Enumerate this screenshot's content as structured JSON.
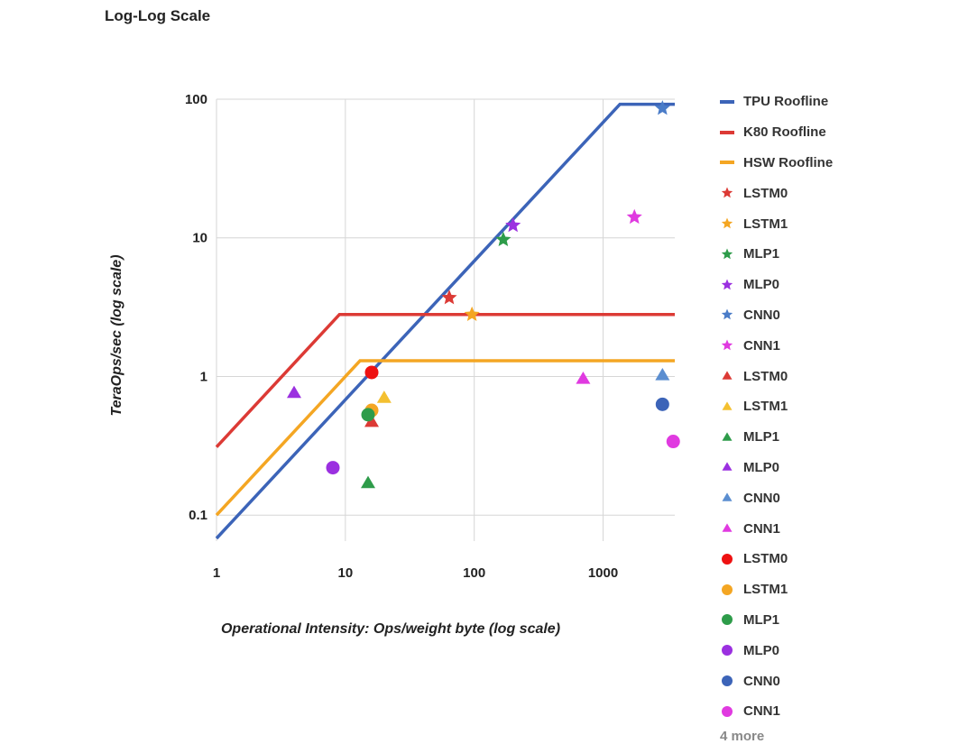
{
  "chart_data": {
    "type": "scatter",
    "title": "Log-Log Scale",
    "xlabel": "Operational Intensity: Ops/weight byte (log scale)",
    "ylabel": "TeraOps/sec (log scale)",
    "xscale": "log",
    "yscale": "log",
    "xlim": [
      1,
      3600
    ],
    "ylim": [
      0.065,
      100
    ],
    "x_ticks": [
      {
        "value": 1,
        "label": "1"
      },
      {
        "value": 10,
        "label": "10"
      },
      {
        "value": 100,
        "label": "100"
      },
      {
        "value": 1000,
        "label": "1000"
      }
    ],
    "y_ticks": [
      {
        "value": 0.1,
        "label": "0.1"
      },
      {
        "value": 1,
        "label": "1"
      },
      {
        "value": 10,
        "label": "10"
      },
      {
        "value": 100,
        "label": "100"
      }
    ],
    "grid": true,
    "legend_position": "right",
    "legend_more": "4 more",
    "lines": [
      {
        "name": "TPU Roofline",
        "color": "#3c64b8",
        "points": [
          [
            1,
            0.068
          ],
          [
            1350,
            92
          ],
          [
            3600,
            92
          ]
        ]
      },
      {
        "name": "K80 Roofline",
        "color": "#dc3a35",
        "points": [
          [
            1,
            0.31
          ],
          [
            9,
            2.8
          ],
          [
            3600,
            2.8
          ]
        ]
      },
      {
        "name": "HSW Roofline",
        "color": "#f4a623",
        "points": [
          [
            1,
            0.1
          ],
          [
            13,
            1.3
          ],
          [
            3600,
            1.3
          ]
        ]
      }
    ],
    "series": [
      {
        "name": "LSTM0",
        "marker": "star",
        "color": "#dc3a35",
        "points": [
          [
            64,
            3.7
          ]
        ]
      },
      {
        "name": "LSTM1",
        "marker": "star",
        "color": "#f4a623",
        "points": [
          [
            96,
            2.8
          ]
        ]
      },
      {
        "name": "MLP1",
        "marker": "star",
        "color": "#2e9c4a",
        "points": [
          [
            168,
            9.7
          ]
        ]
      },
      {
        "name": "MLP0",
        "marker": "star",
        "color": "#9b30e0",
        "points": [
          [
            200,
            12.3
          ]
        ]
      },
      {
        "name": "CNN0",
        "marker": "star",
        "color": "#4a7cc8",
        "points": [
          [
            2888,
            86
          ]
        ]
      },
      {
        "name": "CNN1",
        "marker": "star",
        "color": "#e03ae0",
        "points": [
          [
            1750,
            14.1
          ]
        ]
      },
      {
        "name": "LSTM0",
        "marker": "triangle",
        "color": "#dc3a35",
        "points": [
          [
            16,
            0.47
          ]
        ]
      },
      {
        "name": "LSTM1",
        "marker": "triangle",
        "color": "#f4c030",
        "points": [
          [
            20,
            0.7
          ]
        ]
      },
      {
        "name": "MLP1",
        "marker": "triangle",
        "color": "#2e9c4a",
        "points": [
          [
            15,
            0.17
          ]
        ]
      },
      {
        "name": "MLP0",
        "marker": "triangle",
        "color": "#9b30e0",
        "points": [
          [
            4,
            0.76
          ]
        ]
      },
      {
        "name": "CNN0",
        "marker": "triangle",
        "color": "#5b8ed0",
        "points": [
          [
            2888,
            1.02
          ]
        ]
      },
      {
        "name": "CNN1",
        "marker": "triangle",
        "color": "#e03ae0",
        "points": [
          [
            700,
            0.96
          ]
        ]
      },
      {
        "name": "LSTM0",
        "marker": "circle",
        "color": "#ee1111",
        "points": [
          [
            16,
            1.07
          ]
        ]
      },
      {
        "name": "LSTM1",
        "marker": "circle",
        "color": "#f4a623",
        "points": [
          [
            16,
            0.57
          ]
        ]
      },
      {
        "name": "MLP1",
        "marker": "circle",
        "color": "#2e9c4a",
        "points": [
          [
            15,
            0.53
          ]
        ]
      },
      {
        "name": "MLP0",
        "marker": "circle",
        "color": "#9b30e0",
        "points": [
          [
            8,
            0.22
          ]
        ]
      },
      {
        "name": "CNN0",
        "marker": "circle",
        "color": "#3c64b8",
        "points": [
          [
            2888,
            0.63
          ]
        ]
      },
      {
        "name": "CNN1",
        "marker": "circle",
        "color": "#e03ae0",
        "points": [
          [
            3500,
            0.34
          ]
        ]
      }
    ]
  }
}
